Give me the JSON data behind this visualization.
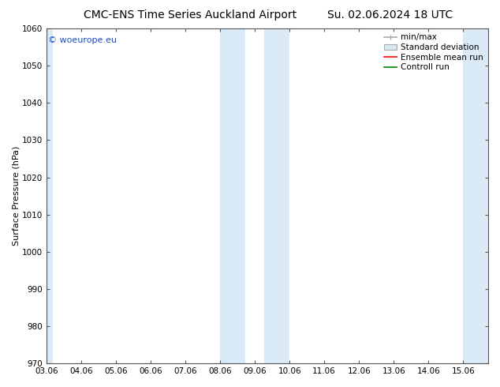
{
  "title_left": "CMC-ENS Time Series Auckland Airport",
  "title_right": "Su. 02.06.2024 18 UTC",
  "ylabel": "Surface Pressure (hPa)",
  "ylim": [
    970,
    1060
  ],
  "yticks": [
    970,
    980,
    990,
    1000,
    1010,
    1020,
    1030,
    1040,
    1050,
    1060
  ],
  "xtick_labels": [
    "03.06",
    "04.06",
    "05.06",
    "06.06",
    "07.06",
    "08.06",
    "09.06",
    "10.06",
    "11.06",
    "12.06",
    "13.06",
    "14.06",
    "15.06"
  ],
  "xtick_positions": [
    3,
    4,
    5,
    6,
    7,
    8,
    9,
    10,
    11,
    12,
    13,
    14,
    15
  ],
  "xlim": [
    3.0,
    15.72
  ],
  "shaded_bands": [
    {
      "xstart": 3.0,
      "xend": 3.18
    },
    {
      "xstart": 8.0,
      "xend": 8.72
    },
    {
      "xstart": 9.28,
      "xend": 10.0
    },
    {
      "xstart": 15.0,
      "xend": 15.72
    }
  ],
  "watermark": "© woeurope.eu",
  "watermark_color": "#1a4fcc",
  "shade_color": "#daeaf7",
  "bg_color": "#ffffff",
  "title_fontsize": 10,
  "axis_label_fontsize": 8,
  "tick_fontsize": 7.5,
  "legend_fontsize": 7.5
}
